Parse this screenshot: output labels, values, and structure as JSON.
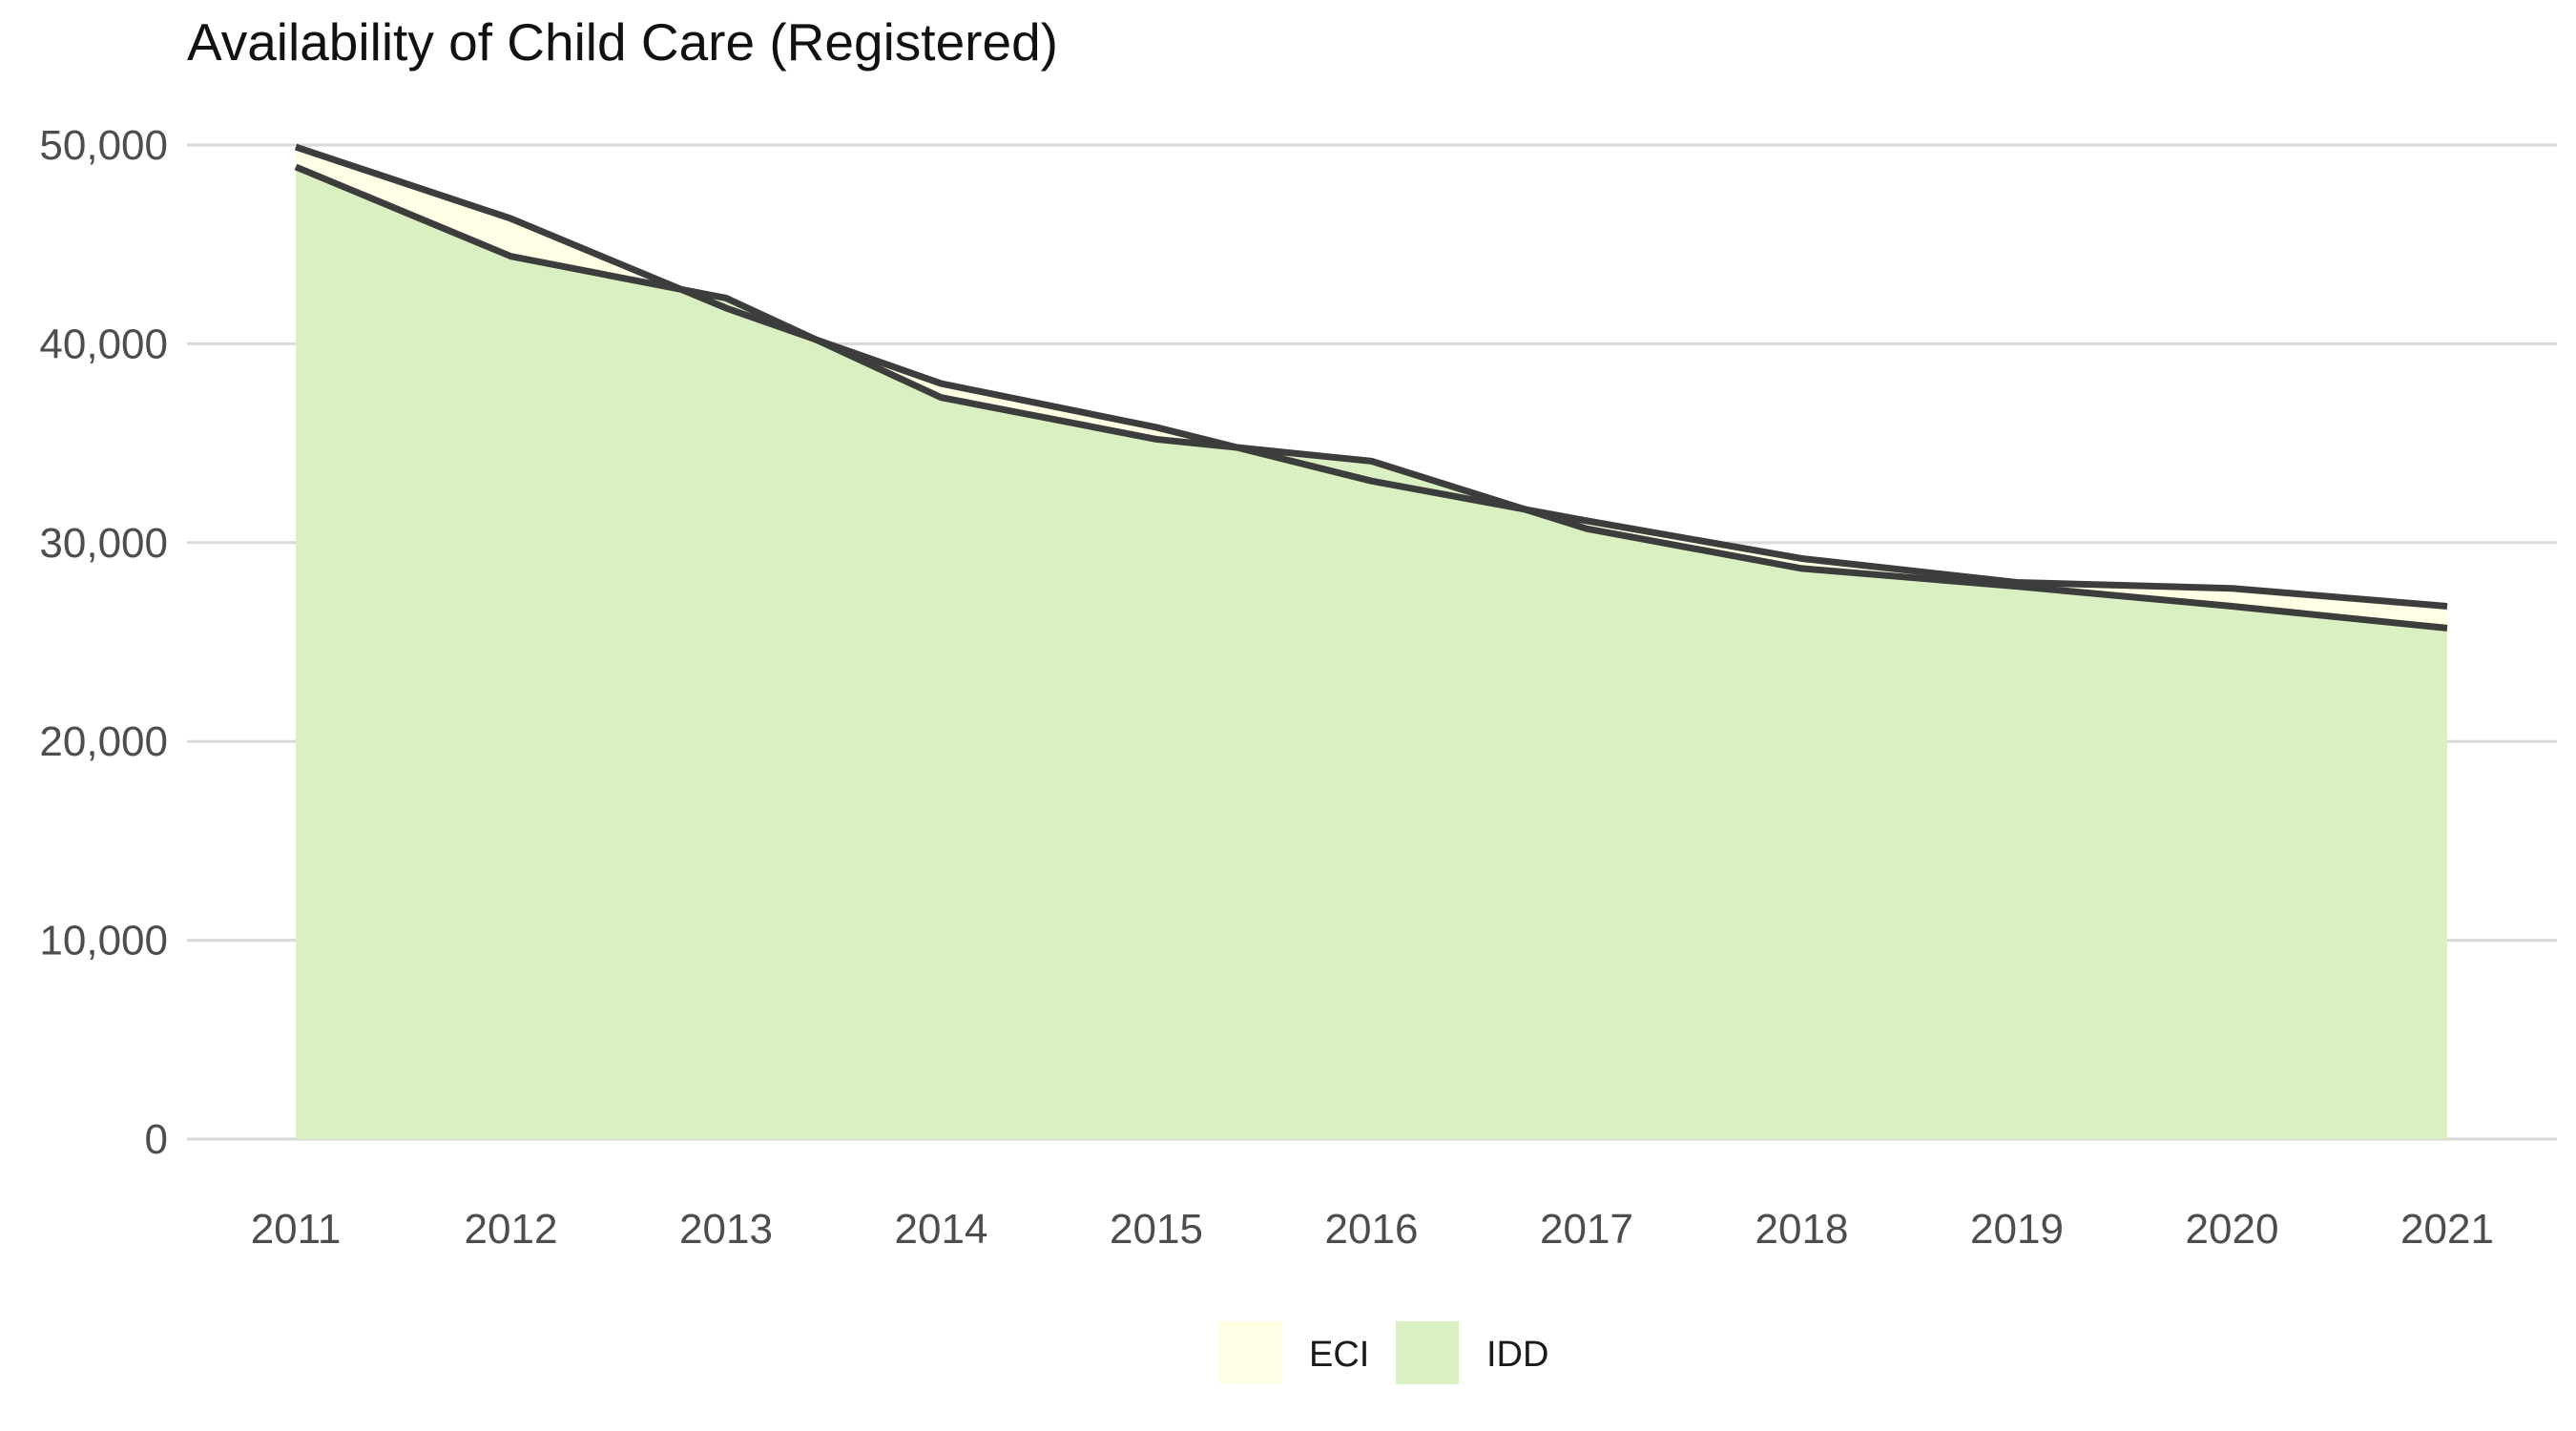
{
  "chart_data": {
    "type": "area",
    "title": "Availability of Child Care (Registered)",
    "xlabel": "",
    "ylabel": "",
    "x": [
      2011,
      2012,
      2013,
      2014,
      2015,
      2016,
      2017,
      2018,
      2019,
      2020,
      2021
    ],
    "x_tick_labels": [
      "2011",
      "2012",
      "2013",
      "2014",
      "2015",
      "2016",
      "2017",
      "2018",
      "2019",
      "2020",
      "2021"
    ],
    "y_ticks": [
      0,
      10000,
      20000,
      30000,
      40000,
      50000
    ],
    "y_tick_labels": [
      "0",
      "10,000",
      "20,000",
      "30,000",
      "40,000",
      "50,000"
    ],
    "ylim": [
      0,
      50000
    ],
    "grid": "horizontal",
    "legend_position": "bottom",
    "series": [
      {
        "name": "ECI",
        "color": "#ffffe5",
        "values": [
          49900,
          46300,
          41800,
          38000,
          35800,
          33100,
          31100,
          29200,
          28000,
          27700,
          26800
        ]
      },
      {
        "name": "IDD",
        "color": "#d9f0c3",
        "values": [
          48900,
          44400,
          42300,
          37300,
          35200,
          34100,
          30700,
          28700,
          27800,
          26800,
          25700
        ]
      }
    ],
    "line_color": "#3d3d3d"
  }
}
